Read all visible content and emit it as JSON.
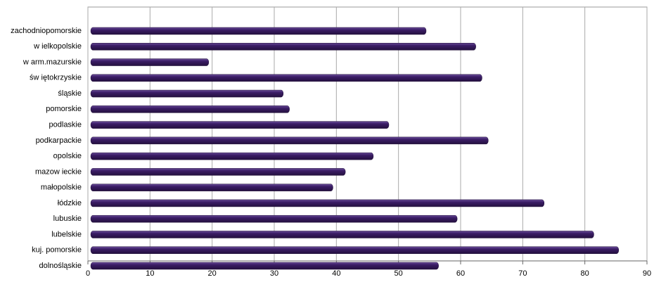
{
  "chart_data": {
    "type": "hbar",
    "categories": [
      "zachodniopomorskie",
      "w ielkopolskie",
      "w arm.mazurskie",
      "św iętokrzyskie",
      "śląskie",
      "pomorskie",
      "podlaskie",
      "podkarpackie",
      "opolskie",
      "mazow ieckie",
      "małopolskie",
      "łódzkie",
      "lubuskie",
      "lubelskie",
      "kuj. pomorskie",
      "dolnośląskie"
    ],
    "values": [
      54,
      62,
      19,
      63,
      31,
      32,
      48,
      64,
      45.5,
      41,
      39,
      73,
      59,
      81,
      85,
      56
    ],
    "color": "#3b1d66",
    "xlim": [
      0,
      90
    ],
    "xticks": [
      0,
      10,
      20,
      30,
      40,
      50,
      60,
      70,
      80,
      90
    ],
    "grid": true
  }
}
